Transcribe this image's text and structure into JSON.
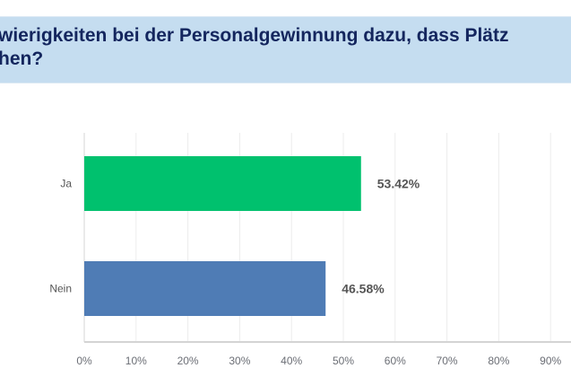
{
  "chart_data": {
    "type": "bar",
    "orientation": "horizontal",
    "title_lines": [
      "wierigkeiten bei der Personalgewinnung dazu, dass Plätz",
      "hen?"
    ],
    "categories": [
      "Ja",
      "Nein"
    ],
    "values": [
      53.42,
      46.58
    ],
    "data_labels": [
      "53.42%",
      "46.58%"
    ],
    "colors": [
      "#00c16e",
      "#4f7cb5"
    ],
    "xlim": [
      0,
      100
    ],
    "xticks": [
      "0%",
      "10%",
      "20%",
      "30%",
      "40%",
      "50%",
      "60%",
      "70%",
      "80%",
      "90%"
    ],
    "grid": true,
    "xlabel": "",
    "ylabel": ""
  }
}
